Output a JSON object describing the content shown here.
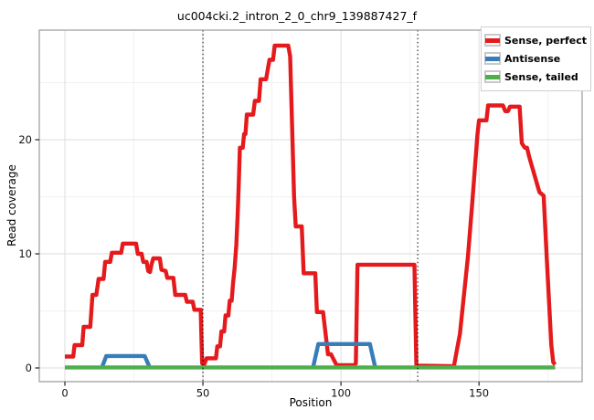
{
  "chart_data": {
    "type": "line",
    "title": "uc004cki.2_intron_2_0_chr9_139887427_f",
    "xlabel": "Position",
    "ylabel": "Read coverage",
    "xlim": [
      -9.27,
      187.35
    ],
    "ylim": [
      -1.2,
      29.6
    ],
    "x_ticks": [
      0,
      50,
      100,
      150
    ],
    "x_minor_ticks": [
      25,
      75,
      125,
      175
    ],
    "y_ticks": [
      0,
      10,
      20
    ],
    "y_minor_ticks": [
      5,
      15,
      25
    ],
    "grid": "major+minor",
    "major_grid_color": "#dedede",
    "minor_grid_color": "#f1f1f1",
    "panel_border_color": "#999999",
    "tick_color": "#222222",
    "tick_label_color": "#111111",
    "vline_positions": [
      50,
      127.8
    ],
    "vline_style": "dotted",
    "vline_color": "#000000",
    "line_width": 4.4,
    "legend": {
      "position": "top-right-inside",
      "entries": [
        {
          "label": "Sense, perfect",
          "color": "#E41A1C"
        },
        {
          "label": "Antisense",
          "color": "#377EB8"
        },
        {
          "label": "Sense, tailed",
          "color": "#4DAF4A"
        }
      ]
    },
    "series": [
      {
        "name": "Sense, perfect",
        "color": "#E41A1C",
        "paths": [
          [
            [
              0,
              1
            ],
            [
              3,
              1
            ],
            [
              3.5,
              2
            ],
            [
              6.3,
              2
            ],
            [
              6.8,
              3.6
            ],
            [
              9.2,
              3.6
            ],
            [
              10,
              6.4
            ],
            [
              11.4,
              6.4
            ],
            [
              12.2,
              7.8
            ],
            [
              14,
              7.8
            ],
            [
              14.6,
              9.3
            ],
            [
              16.4,
              9.3
            ],
            [
              17,
              10.1
            ],
            [
              20.4,
              10.1
            ],
            [
              21,
              10.9
            ],
            [
              25.8,
              10.9
            ],
            [
              26.4,
              10
            ],
            [
              27.8,
              10
            ],
            [
              28.4,
              9.3
            ],
            [
              29.6,
              9.3
            ],
            [
              30.2,
              8.5
            ],
            [
              30.8,
              8.4
            ],
            [
              31.4,
              9.1
            ],
            [
              32,
              9.6
            ],
            [
              34.4,
              9.6
            ],
            [
              35,
              8.6
            ],
            [
              36.5,
              8.5
            ],
            [
              37.1,
              7.9
            ],
            [
              39.3,
              7.9
            ],
            [
              40,
              6.4
            ],
            [
              43.6,
              6.4
            ],
            [
              44.2,
              5.8
            ],
            [
              46.3,
              5.8
            ],
            [
              46.9,
              5.1
            ],
            [
              49.2,
              5.1
            ],
            [
              49.7,
              0.4
            ],
            [
              50.4,
              0.25
            ],
            [
              51.3,
              0.85
            ],
            [
              54.7,
              0.85
            ],
            [
              55.2,
              1.9
            ],
            [
              56.2,
              1.9
            ],
            [
              56.7,
              3.2
            ],
            [
              57.7,
              3.2
            ],
            [
              58.2,
              4.6
            ],
            [
              59.2,
              4.6
            ],
            [
              59.7,
              5.9
            ],
            [
              60.4,
              5.9
            ],
            [
              60.9,
              7.4
            ],
            [
              61.5,
              8.8
            ],
            [
              62.1,
              10.8
            ],
            [
              62.6,
              13.5
            ],
            [
              63,
              16.2
            ],
            [
              63.4,
              19.3
            ],
            [
              64.4,
              19.3
            ],
            [
              64.9,
              20.5
            ],
            [
              65.4,
              20.5
            ],
            [
              65.9,
              22.2
            ],
            [
              68.2,
              22.2
            ],
            [
              68.8,
              23.4
            ],
            [
              70.3,
              23.4
            ],
            [
              70.9,
              25.3
            ],
            [
              72.9,
              25.3
            ],
            [
              73.5,
              26.2
            ],
            [
              74.1,
              27
            ],
            [
              75.4,
              27
            ],
            [
              76,
              28.25
            ],
            [
              80.9,
              28.25
            ],
            [
              81.6,
              27.3
            ],
            [
              83,
              15
            ],
            [
              83.6,
              12.4
            ],
            [
              85.8,
              12.4
            ],
            [
              86.5,
              8.3
            ],
            [
              90.7,
              8.3
            ],
            [
              91.3,
              4.9
            ],
            [
              93.5,
              4.9
            ],
            [
              95.3,
              1.2
            ],
            [
              96.4,
              1.2
            ],
            [
              98.4,
              0.25
            ],
            [
              104.9,
              0.25
            ],
            [
              105.4,
              0.4
            ],
            [
              106,
              9.05
            ],
            [
              126.6,
              9.05
            ],
            [
              127.3,
              0.2
            ],
            [
              140.9,
              0.15
            ],
            [
              143.1,
              3
            ],
            [
              146,
              9.8
            ],
            [
              147.6,
              14.6
            ],
            [
              149.4,
              20.4
            ],
            [
              150,
              21.7
            ],
            [
              152.7,
              21.7
            ],
            [
              153.3,
              23
            ],
            [
              158.7,
              23
            ],
            [
              159.5,
              22.5
            ],
            [
              160.5,
              22.5
            ],
            [
              161.2,
              22.9
            ],
            [
              164.7,
              22.9
            ],
            [
              165.5,
              19.7
            ],
            [
              166.6,
              19.3
            ],
            [
              167.4,
              19.3
            ],
            [
              168.2,
              18.5
            ],
            [
              171.9,
              15.4
            ],
            [
              173.4,
              15.1
            ],
            [
              174.5,
              9.8
            ],
            [
              176.2,
              2
            ],
            [
              176.9,
              0.5
            ],
            [
              177.6,
              0.3
            ]
          ]
        ]
      },
      {
        "name": "Antisense",
        "color": "#377EB8",
        "paths": [
          [
            [
              13.4,
              0.05
            ],
            [
              15,
              1.05
            ],
            [
              28.9,
              1.05
            ],
            [
              30.7,
              0.05
            ]
          ],
          [
            [
              89.9,
              0.05
            ],
            [
              91.8,
              2.1
            ],
            [
              110.5,
              2.1
            ],
            [
              112.4,
              0.05
            ]
          ]
        ]
      },
      {
        "name": "Sense, tailed",
        "color": "#4DAF4A",
        "paths": [
          [
            [
              0,
              0.05
            ],
            [
              177.6,
              0.05
            ]
          ]
        ]
      }
    ]
  }
}
